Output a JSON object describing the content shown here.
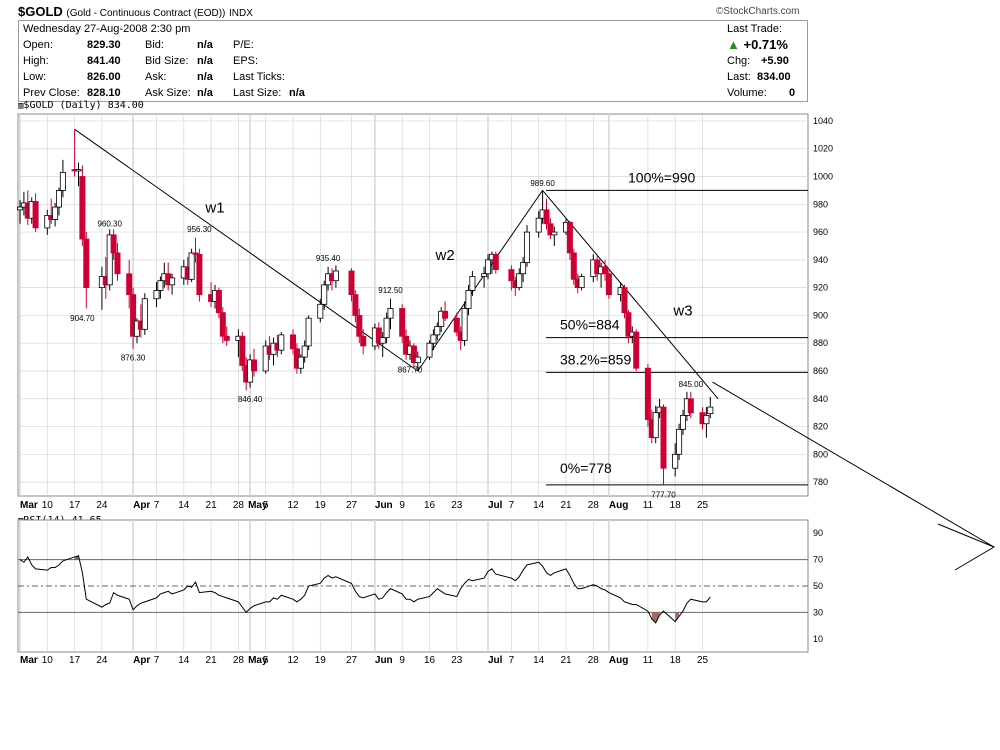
{
  "header": {
    "symbol": "$GOLD",
    "name": "(Gold - Continuous Contract (EOD))",
    "exchange": "INDX",
    "brand": "©StockCharts.com",
    "date_line": "Wednesday  27-Aug-2008  2:30 pm"
  },
  "quote": {
    "open_label": "Open:",
    "open": "829.30",
    "high_label": "High:",
    "high": "841.40",
    "low_label": "Low:",
    "low": "826.00",
    "prev_label": "Prev Close:",
    "prev": "828.10",
    "bid_label": "Bid:",
    "bid": "n/a",
    "bidsize_label": "Bid Size:",
    "bidsize": "n/a",
    "ask_label": "Ask:",
    "ask": "n/a",
    "asksize_label": "Ask Size:",
    "asksize": "n/a",
    "pe_label": "P/E:",
    "eps_label": "EPS:",
    "lastticks_label": "Last Ticks:",
    "lastsize_label": "Last Size:",
    "lastsize": "n/a",
    "lasttrade_label": "Last Trade:",
    "pct": "+0.71%",
    "chg_label": "Chg:",
    "chg": "+5.90",
    "last_label": "Last:",
    "last": "834.00",
    "volume_label": "Volume:",
    "volume": "0"
  },
  "price_panel_title": "$GOLD (Daily) 834.00",
  "rsi_panel_title": "RSI(14) 41.65",
  "colors": {
    "up": "#ffffff",
    "down": "#cc0033",
    "up_border": "#000000",
    "grid": "#d6d6d6",
    "line": "#000000"
  },
  "chart_data": [
    {
      "type": "candlestick",
      "y_ticks": [
        "1040",
        "1020",
        "1000",
        "980",
        "960",
        "940",
        "920",
        "900",
        "880",
        "860",
        "840",
        "820",
        "800",
        "780"
      ],
      "ylim": [
        770,
        1045
      ],
      "x_ticks": [
        "Mar",
        "10",
        "17",
        "24",
        "Apr",
        "7",
        "14",
        "21",
        "28",
        "May",
        "5",
        "12",
        "19",
        "27",
        "Jun",
        "9",
        "16",
        "23",
        "Jul",
        "7",
        "14",
        "21",
        "28",
        "Aug",
        "11",
        "18",
        "25"
      ],
      "annotations": [
        {
          "text": "904.70",
          "date": "2008-03-19",
          "y": 904.7
        },
        {
          "text": "960.30",
          "date": "2008-03-26",
          "y": 960.3
        },
        {
          "text": "876.30",
          "date": "2008-04-01",
          "y": 876.3
        },
        {
          "text": "956.30",
          "date": "2008-04-18",
          "y": 956.3
        },
        {
          "text": "846.40",
          "date": "2008-05-01",
          "y": 846.4
        },
        {
          "text": "935.40",
          "date": "2008-05-21",
          "y": 935.4
        },
        {
          "text": "912.50",
          "date": "2008-06-06",
          "y": 912.5
        },
        {
          "text": "867.70",
          "date": "2008-06-11",
          "y": 867.7
        },
        {
          "text": "989.60",
          "date": "2008-07-15",
          "y": 989.6
        },
        {
          "text": "845.00",
          "date": "2008-08-22",
          "y": 845.0
        },
        {
          "text": "777.70",
          "date": "2008-08-15",
          "y": 777.7
        },
        {
          "text": "w1",
          "date": "2008-04-22",
          "y": 974
        },
        {
          "text": "w2",
          "date": "2008-06-20",
          "y": 940
        },
        {
          "text": "w3",
          "date": "2008-08-20",
          "y": 900
        }
      ],
      "fib_levels": [
        {
          "label": "100%=990",
          "value": 990
        },
        {
          "label": "50%=884",
          "value": 884
        },
        {
          "label": "38.2%=859",
          "value": 859
        },
        {
          "label": "0%=778",
          "value": 778
        }
      ],
      "trendlines": [
        {
          "from": [
            "2008-03-17",
            1034
          ],
          "to": [
            "2008-06-13",
            860
          ]
        },
        {
          "from": [
            "2008-06-13",
            860
          ],
          "to": [
            "2008-07-15",
            990
          ]
        },
        {
          "from": [
            "2008-07-15",
            990
          ],
          "to": [
            "2008-08-29",
            840
          ]
        }
      ],
      "candles": [
        [
          "2008-03-03",
          976,
          983,
          966,
          978
        ],
        [
          "2008-03-04",
          978,
          989,
          972,
          981
        ],
        [
          "2008-03-05",
          981,
          990,
          965,
          970
        ],
        [
          "2008-03-06",
          970,
          985,
          966,
          982
        ],
        [
          "2008-03-07",
          982,
          988,
          960,
          963
        ],
        [
          "2008-03-10",
          963,
          976,
          958,
          972
        ],
        [
          "2008-03-11",
          972,
          984,
          966,
          969
        ],
        [
          "2008-03-12",
          969,
          981,
          964,
          978
        ],
        [
          "2008-03-13",
          978,
          992,
          972,
          990
        ],
        [
          "2008-03-14",
          990,
          1012,
          985,
          1003
        ],
        [
          "2008-03-17",
          1005,
          1034,
          1000,
          1004
        ],
        [
          "2008-03-18",
          1004,
          1010,
          993,
          1005
        ],
        [
          "2008-03-19",
          1000,
          1008,
          950,
          955
        ],
        [
          "2008-03-20",
          955,
          960,
          905,
          920
        ],
        [
          "2008-03-24",
          920,
          935,
          904,
          928
        ],
        [
          "2008-03-25",
          928,
          942,
          912,
          922
        ],
        [
          "2008-03-26",
          922,
          962,
          918,
          958
        ],
        [
          "2008-03-27",
          958,
          962,
          940,
          945
        ],
        [
          "2008-03-28",
          945,
          952,
          925,
          930
        ],
        [
          "2008-03-31",
          930,
          940,
          905,
          915
        ],
        [
          "2008-04-01",
          915,
          920,
          876,
          885
        ],
        [
          "2008-04-02",
          885,
          898,
          880,
          896
        ],
        [
          "2008-04-03",
          896,
          908,
          884,
          890
        ],
        [
          "2008-04-04",
          890,
          916,
          886,
          912
        ],
        [
          "2008-04-07",
          912,
          924,
          906,
          918
        ],
        [
          "2008-04-08",
          918,
          928,
          912,
          925
        ],
        [
          "2008-04-09",
          925,
          938,
          920,
          930
        ],
        [
          "2008-04-10",
          930,
          938,
          918,
          922
        ],
        [
          "2008-04-11",
          922,
          930,
          915,
          927
        ],
        [
          "2008-04-14",
          927,
          940,
          922,
          935
        ],
        [
          "2008-04-15",
          935,
          942,
          922,
          926
        ],
        [
          "2008-04-16",
          926,
          948,
          924,
          945
        ],
        [
          "2008-04-17",
          945,
          956,
          938,
          944
        ],
        [
          "2008-04-18",
          944,
          948,
          910,
          915
        ],
        [
          "2008-04-21",
          915,
          924,
          906,
          910
        ],
        [
          "2008-04-22",
          910,
          922,
          905,
          918
        ],
        [
          "2008-04-23",
          918,
          920,
          898,
          902
        ],
        [
          "2008-04-24",
          902,
          906,
          880,
          885
        ],
        [
          "2008-04-25",
          885,
          892,
          878,
          882
        ],
        [
          "2008-04-28",
          882,
          890,
          870,
          885
        ],
        [
          "2008-04-29",
          885,
          888,
          860,
          864
        ],
        [
          "2008-04-30",
          864,
          870,
          846,
          852
        ],
        [
          "2008-05-01",
          852,
          872,
          848,
          868
        ],
        [
          "2008-05-02",
          868,
          876,
          856,
          860
        ],
        [
          "2008-05-05",
          860,
          882,
          858,
          878
        ],
        [
          "2008-05-06",
          878,
          885,
          868,
          872
        ],
        [
          "2008-05-07",
          872,
          884,
          864,
          880
        ],
        [
          "2008-05-08",
          880,
          886,
          870,
          875
        ],
        [
          "2008-05-09",
          875,
          888,
          872,
          886
        ],
        [
          "2008-05-12",
          886,
          890,
          872,
          876
        ],
        [
          "2008-05-13",
          876,
          880,
          858,
          862
        ],
        [
          "2008-05-14",
          862,
          872,
          858,
          870
        ],
        [
          "2008-05-15",
          870,
          882,
          866,
          878
        ],
        [
          "2008-05-16",
          878,
          900,
          875,
          898
        ],
        [
          "2008-05-19",
          898,
          912,
          895,
          908
        ],
        [
          "2008-05-20",
          908,
          925,
          904,
          922
        ],
        [
          "2008-05-21",
          922,
          935,
          918,
          930
        ],
        [
          "2008-05-22",
          930,
          934,
          918,
          925
        ],
        [
          "2008-05-23",
          925,
          936,
          920,
          932
        ],
        [
          "2008-05-27",
          932,
          934,
          910,
          915
        ],
        [
          "2008-05-28",
          915,
          918,
          895,
          900
        ],
        [
          "2008-05-29",
          900,
          905,
          880,
          885
        ],
        [
          "2008-05-30",
          885,
          890,
          872,
          878
        ],
        [
          "2008-06-02",
          878,
          894,
          875,
          891
        ],
        [
          "2008-06-03",
          891,
          895,
          876,
          880
        ],
        [
          "2008-06-04",
          880,
          888,
          870,
          884
        ],
        [
          "2008-06-05",
          884,
          902,
          880,
          898
        ],
        [
          "2008-06-06",
          898,
          912,
          890,
          905
        ],
        [
          "2008-06-09",
          905,
          908,
          880,
          885
        ],
        [
          "2008-06-10",
          885,
          890,
          868,
          872
        ],
        [
          "2008-06-11",
          872,
          882,
          868,
          878
        ],
        [
          "2008-06-12",
          878,
          880,
          862,
          866
        ],
        [
          "2008-06-13",
          866,
          874,
          860,
          870
        ],
        [
          "2008-06-16",
          870,
          882,
          868,
          880
        ],
        [
          "2008-06-17",
          880,
          890,
          875,
          886
        ],
        [
          "2008-06-18",
          886,
          895,
          882,
          892
        ],
        [
          "2008-06-19",
          892,
          906,
          888,
          903
        ],
        [
          "2008-06-20",
          903,
          910,
          896,
          898
        ],
        [
          "2008-06-23",
          898,
          902,
          885,
          888
        ],
        [
          "2008-06-24",
          888,
          892,
          875,
          882
        ],
        [
          "2008-06-25",
          882,
          910,
          878,
          905
        ],
        [
          "2008-06-26",
          905,
          922,
          900,
          918
        ],
        [
          "2008-06-27",
          918,
          932,
          914,
          928
        ],
        [
          "2008-06-30",
          928,
          935,
          920,
          930
        ],
        [
          "2008-07-01",
          930,
          944,
          926,
          940
        ],
        [
          "2008-07-02",
          940,
          946,
          930,
          944
        ],
        [
          "2008-07-03",
          944,
          946,
          930,
          933
        ],
        [
          "2008-07-07",
          933,
          936,
          918,
          925
        ],
        [
          "2008-07-08",
          925,
          928,
          914,
          920
        ],
        [
          "2008-07-09",
          920,
          934,
          918,
          930
        ],
        [
          "2008-07-10",
          930,
          942,
          924,
          938
        ],
        [
          "2008-07-11",
          938,
          965,
          935,
          960
        ],
        [
          "2008-07-14",
          960,
          975,
          956,
          970
        ],
        [
          "2008-07-15",
          970,
          990,
          966,
          976
        ],
        [
          "2008-07-16",
          976,
          984,
          962,
          966
        ],
        [
          "2008-07-17",
          966,
          970,
          955,
          958
        ],
        [
          "2008-07-18",
          958,
          964,
          950,
          960
        ],
        [
          "2008-07-21",
          960,
          970,
          958,
          967
        ],
        [
          "2008-07-22",
          967,
          968,
          940,
          945
        ],
        [
          "2008-07-23",
          945,
          948,
          922,
          926
        ],
        [
          "2008-07-24",
          926,
          930,
          916,
          920
        ],
        [
          "2008-07-25",
          920,
          930,
          918,
          928
        ],
        [
          "2008-07-28",
          928,
          944,
          924,
          940
        ],
        [
          "2008-07-29",
          940,
          944,
          925,
          930
        ],
        [
          "2008-07-30",
          930,
          938,
          920,
          935
        ],
        [
          "2008-07-31",
          935,
          940,
          925,
          930
        ],
        [
          "2008-08-01",
          930,
          934,
          912,
          915
        ],
        [
          "2008-08-04",
          915,
          924,
          910,
          920
        ],
        [
          "2008-08-05",
          920,
          922,
          898,
          902
        ],
        [
          "2008-08-06",
          902,
          904,
          880,
          885
        ],
        [
          "2008-08-07",
          885,
          892,
          880,
          888
        ],
        [
          "2008-08-08",
          888,
          890,
          860,
          862
        ],
        [
          "2008-08-11",
          862,
          865,
          820,
          825
        ],
        [
          "2008-08-12",
          825,
          832,
          808,
          812
        ],
        [
          "2008-08-13",
          812,
          835,
          808,
          830
        ],
        [
          "2008-08-14",
          830,
          840,
          826,
          834
        ],
        [
          "2008-08-15",
          834,
          836,
          778,
          790
        ],
        [
          "2008-08-18",
          790,
          808,
          784,
          800
        ],
        [
          "2008-08-19",
          800,
          822,
          796,
          818
        ],
        [
          "2008-08-20",
          818,
          832,
          814,
          828
        ],
        [
          "2008-08-21",
          828,
          845,
          824,
          840
        ],
        [
          "2008-08-22",
          840,
          845,
          826,
          830
        ],
        [
          "2008-08-25",
          830,
          834,
          818,
          822
        ],
        [
          "2008-08-26",
          822,
          834,
          812,
          828
        ],
        [
          "2008-08-27",
          829.3,
          841.4,
          826,
          834
        ]
      ]
    },
    {
      "type": "line",
      "name": "RSI(14)",
      "y_ticks": [
        "90",
        "70",
        "50",
        "30",
        "10"
      ],
      "ylim": [
        0,
        100
      ],
      "levels": [
        70,
        50,
        30
      ],
      "values": [
        70,
        68,
        72,
        66,
        63,
        62,
        64,
        64,
        66,
        69,
        72,
        73,
        60,
        40,
        34,
        36,
        37,
        45,
        43,
        40,
        32,
        35,
        37,
        38,
        41,
        44,
        45,
        46,
        44,
        47,
        50,
        49,
        53,
        45,
        46,
        45,
        43,
        42,
        41,
        38,
        34,
        30,
        33,
        35,
        38,
        38,
        41,
        40,
        43,
        40,
        38,
        40,
        43,
        50,
        52,
        56,
        58,
        56,
        57,
        52,
        46,
        42,
        41,
        44,
        40,
        41,
        45,
        48,
        44,
        40,
        40,
        38,
        40,
        42,
        45,
        48,
        46,
        44,
        42,
        48,
        52,
        55,
        54,
        56,
        61,
        63,
        59,
        56,
        54,
        57,
        62,
        66,
        68,
        65,
        60,
        58,
        60,
        63,
        58,
        52,
        48,
        48,
        51,
        50,
        48,
        47,
        45,
        41,
        38,
        37,
        36,
        36,
        31,
        25,
        22,
        28,
        31,
        23,
        27,
        31,
        37,
        40,
        38,
        38,
        41.65
      ]
    }
  ]
}
